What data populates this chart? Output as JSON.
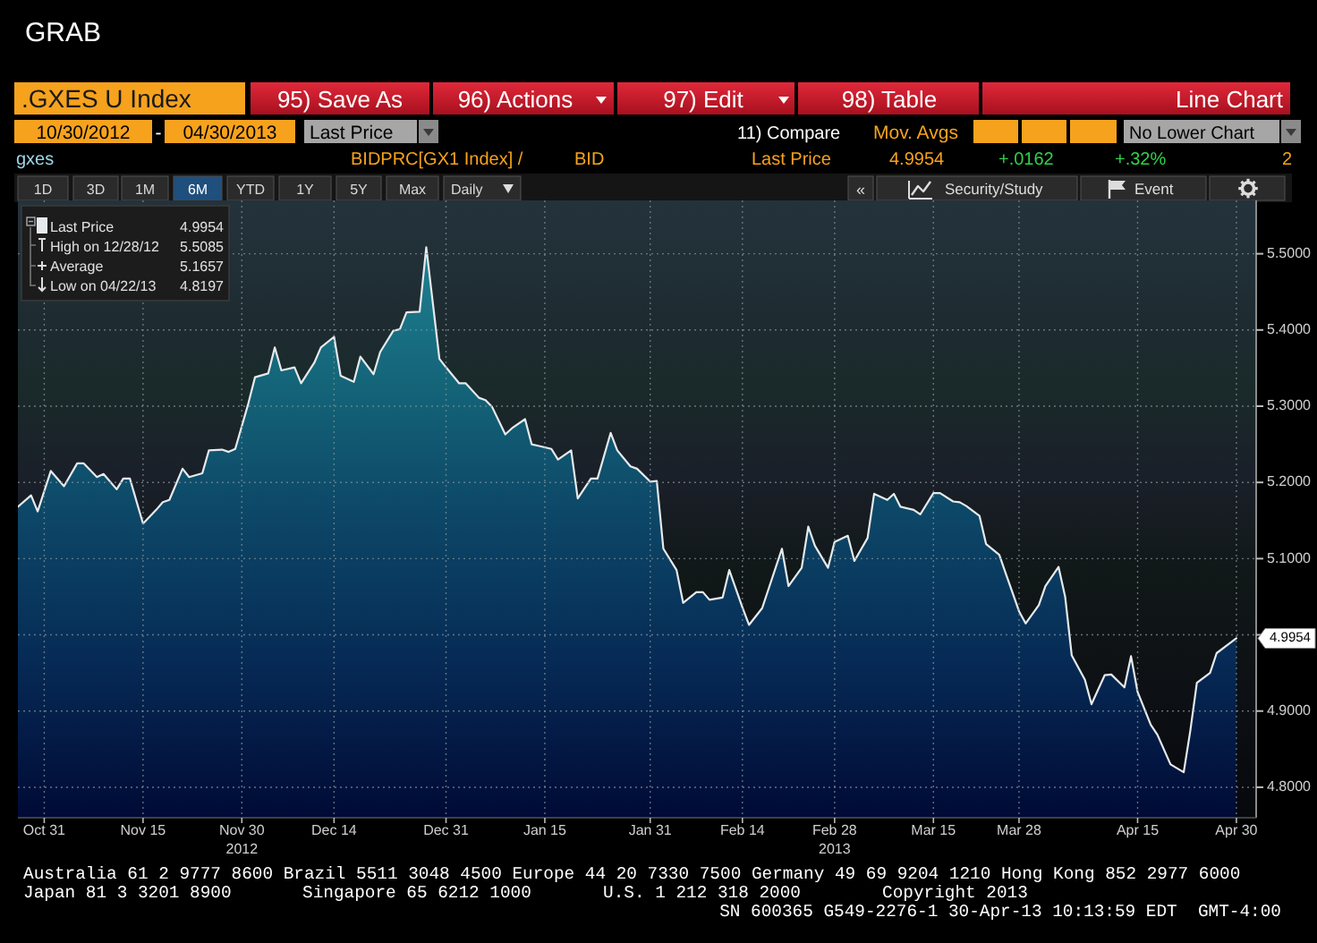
{
  "chart_data": {
    "type": "area",
    "title": ".GXES U Index",
    "x": [
      "2012-10-27",
      "2012-10-29",
      "2012-10-30",
      "2012-11-01",
      "2012-11-03",
      "2012-11-05",
      "2012-11-06",
      "2012-11-08",
      "2012-11-09",
      "2012-11-11",
      "2012-11-12",
      "2012-11-13",
      "2012-11-15",
      "2012-11-17",
      "2012-11-18",
      "2012-11-19",
      "2012-11-21",
      "2012-11-22",
      "2012-11-24",
      "2012-11-25",
      "2012-11-27",
      "2012-11-28",
      "2012-11-29",
      "2012-12-01",
      "2012-12-02",
      "2012-12-04",
      "2012-12-05",
      "2012-12-06",
      "2012-12-08",
      "2012-12-09",
      "2012-12-11",
      "2012-12-12",
      "2012-12-14",
      "2012-12-15",
      "2012-12-17",
      "2012-12-18",
      "2012-12-20",
      "2012-12-21",
      "2012-12-23",
      "2012-12-24",
      "2012-12-25",
      "2012-12-27",
      "2012-12-28",
      "2012-12-30",
      "2012-12-31",
      "2013-01-02",
      "2013-01-03",
      "2013-01-05",
      "2013-01-06",
      "2013-01-07",
      "2013-01-09",
      "2013-01-10",
      "2013-01-12",
      "2013-01-13",
      "2013-01-14",
      "2013-01-16",
      "2013-01-17",
      "2013-01-19",
      "2013-01-20",
      "2013-01-22",
      "2013-01-23",
      "2013-01-25",
      "2013-01-26",
      "2013-01-28",
      "2013-01-29",
      "2013-01-31",
      "2013-02-01",
      "2013-02-02",
      "2013-02-04",
      "2013-02-05",
      "2013-02-07",
      "2013-02-08",
      "2013-02-09",
      "2013-02-11",
      "2013-02-12",
      "2013-02-14",
      "2013-02-15",
      "2013-02-17",
      "2013-02-20",
      "2013-02-21",
      "2013-02-23",
      "2013-02-24",
      "2013-02-25",
      "2013-02-27",
      "2013-02-28",
      "2013-03-02",
      "2013-03-03",
      "2013-03-05",
      "2013-03-06",
      "2013-03-08",
      "2013-03-09",
      "2013-03-10",
      "2013-03-12",
      "2013-03-13",
      "2013-03-15",
      "2013-03-16",
      "2013-03-18",
      "2013-03-19",
      "2013-03-20",
      "2013-03-22",
      "2013-03-23",
      "2013-03-25",
      "2013-03-26",
      "2013-03-28",
      "2013-03-29",
      "2013-03-31",
      "2013-04-01",
      "2013-04-03",
      "2013-04-04",
      "2013-04-05",
      "2013-04-07",
      "2013-04-08",
      "2013-04-10",
      "2013-04-11",
      "2013-04-13",
      "2013-04-14",
      "2013-04-15",
      "2013-04-17",
      "2013-04-18",
      "2013-04-20",
      "2013-04-22",
      "2013-04-23",
      "2013-04-24",
      "2013-04-26",
      "2013-04-27",
      "2013-04-29",
      "2013-04-30"
    ],
    "series": [
      {
        "name": "Last Price",
        "color": "#e6eaec",
        "values": [
          5.168,
          5.183,
          5.162,
          5.215,
          5.195,
          5.225,
          5.225,
          5.207,
          5.211,
          5.191,
          5.205,
          5.205,
          5.146,
          5.164,
          5.174,
          5.177,
          5.218,
          5.207,
          5.212,
          5.242,
          5.243,
          5.24,
          5.244,
          5.304,
          5.338,
          5.343,
          5.377,
          5.347,
          5.351,
          5.33,
          5.357,
          5.377,
          5.391,
          5.34,
          5.332,
          5.365,
          5.342,
          5.371,
          5.399,
          5.401,
          5.423,
          5.424,
          5.5085,
          5.362,
          5.351,
          5.33,
          5.33,
          5.311,
          5.308,
          5.299,
          5.263,
          5.271,
          5.283,
          5.25,
          5.248,
          5.244,
          5.23,
          5.242,
          5.179,
          5.205,
          5.205,
          5.265,
          5.242,
          5.221,
          5.218,
          5.201,
          5.202,
          5.113,
          5.085,
          5.042,
          5.056,
          5.056,
          5.046,
          5.049,
          5.085,
          5.036,
          5.013,
          5.035,
          5.113,
          5.064,
          5.088,
          5.142,
          5.117,
          5.088,
          5.122,
          5.13,
          5.097,
          5.127,
          5.185,
          5.177,
          5.185,
          5.168,
          5.164,
          5.158,
          5.186,
          5.186,
          5.175,
          5.174,
          5.169,
          5.156,
          5.119,
          5.105,
          5.08,
          5.031,
          5.015,
          5.039,
          5.064,
          5.089,
          5.05,
          4.973,
          4.941,
          4.909,
          4.947,
          4.948,
          4.931,
          4.972,
          4.925,
          4.882,
          4.869,
          4.83,
          4.8197,
          4.874,
          4.937,
          4.95,
          4.976,
          4.989,
          4.9954
        ]
      }
    ],
    "xlim": [
      "2012-10-27",
      "2013-05-03"
    ],
    "ylim": [
      4.76,
      5.57
    ],
    "xticks": [
      {
        "value": "2012-10-31",
        "label": "Oct 31"
      },
      {
        "value": "2012-11-15",
        "label": "Nov 15"
      },
      {
        "value": "2012-11-30",
        "label": "Nov 30\n2012"
      },
      {
        "value": "2012-12-14",
        "label": "Dec 14"
      },
      {
        "value": "2012-12-31",
        "label": "Dec 31"
      },
      {
        "value": "2013-01-15",
        "label": "Jan 15"
      },
      {
        "value": "2013-01-31",
        "label": "Jan 31"
      },
      {
        "value": "2013-02-14",
        "label": "Feb 14"
      },
      {
        "value": "2013-02-28",
        "label": "Feb 28\n2013"
      },
      {
        "value": "2013-03-15",
        "label": "Mar 15"
      },
      {
        "value": "2013-03-28",
        "label": "Mar 28"
      },
      {
        "value": "2013-04-15",
        "label": "Apr 15"
      },
      {
        "value": "2013-04-30",
        "label": "Apr 30"
      }
    ],
    "yticks": [
      {
        "value": 4.8,
        "label": "4.8000"
      },
      {
        "value": 4.9,
        "label": "4.9000"
      },
      {
        "value": 5.0,
        "label": null
      },
      {
        "value": 5.1,
        "label": "5.1000"
      },
      {
        "value": 5.2,
        "label": "5.2000"
      },
      {
        "value": 5.3,
        "label": "5.3000"
      },
      {
        "value": 5.4,
        "label": "5.4000"
      },
      {
        "value": 5.5,
        "label": "5.5000"
      }
    ],
    "grid": true,
    "legend": "top left",
    "annotations": [
      "GRAB",
      "95) Save As",
      "96) Actions",
      "97) Edit",
      "98) Table",
      "Line Chart",
      "10/30/2012",
      "-",
      "04/30/2013",
      "Last Price",
      "11) Compare",
      "Mov. Avgs",
      "No Lower Chart",
      "gxes",
      "BIDPRC[GX1 Index] /",
      "BID",
      "Last Price",
      "4.9954",
      "+.0162",
      "+.32%",
      "2",
      "1D",
      "3D",
      "1M",
      "6M",
      "YTD",
      "1Y",
      "5Y",
      "Max",
      "Daily",
      "«",
      "Security/Study",
      "Event",
      "4.9954",
      "High on 12/28/12 5.5085",
      "Average 5.1657",
      "Low on 04/22/13 4.8197",
      {
        "text": "4.9954",
        "y": 4.9954
      },
      "Australia 61 2 9777 8600 Brazil 5511 3048 4500 Europe 44 20 7330 7500 Germany 49 69 9204 1210 Hong Kong 852 2977 6000",
      "Japan 81 3 3201 8900",
      "Singapore 65 6212 1000",
      "U.S. 1 212 318 2000",
      "Copyright 2013",
      "SN 600365 G549-2276-1 30-Apr-13 10:13:59 EDT  GMT-4:00"
    ]
  }
}
